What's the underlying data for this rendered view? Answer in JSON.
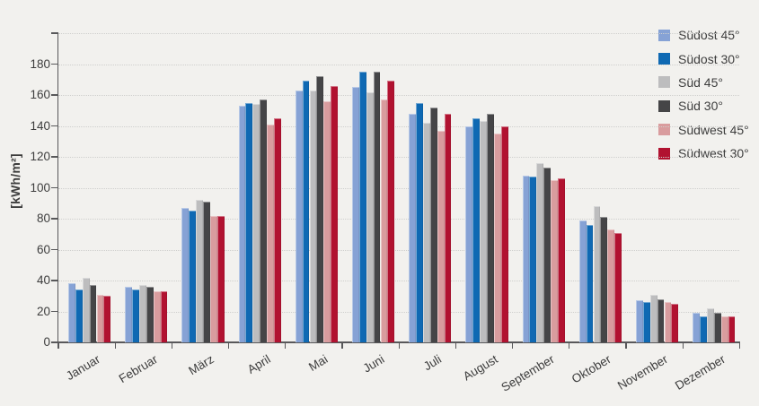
{
  "chart_data": {
    "type": "bar",
    "title": "",
    "xlabel": "",
    "ylabel": "[kWh/m²]",
    "ylim": [
      0,
      200
    ],
    "ytick_step": 20,
    "yticks_labeled": [
      0,
      20,
      40,
      60,
      80,
      100,
      120,
      140,
      160,
      180
    ],
    "grid": "horizontal-dotted",
    "legend_position": "top-right",
    "categories": [
      "Januar",
      "Februar",
      "März",
      "April",
      "Mai",
      "Juni",
      "Juli",
      "August",
      "September",
      "Oktober",
      "November",
      "Dezember"
    ],
    "series": [
      {
        "name": "Südost 45°",
        "color": "#86a2d5",
        "values": [
          38,
          36,
          87,
          153,
          163,
          165,
          148,
          140,
          108,
          79,
          27,
          19
        ]
      },
      {
        "name": "Südost 30°",
        "color": "#0f69b3",
        "values": [
          34,
          34,
          85,
          155,
          169,
          175,
          155,
          145,
          107,
          76,
          26,
          17
        ]
      },
      {
        "name": "Süd 45°",
        "color": "#bdbdbe",
        "values": [
          42,
          37,
          92,
          154,
          163,
          162,
          142,
          143,
          116,
          88,
          31,
          22
        ]
      },
      {
        "name": "Süd 30°",
        "color": "#454547",
        "values": [
          37,
          36,
          91,
          157,
          172,
          175,
          152,
          148,
          113,
          81,
          28,
          19
        ]
      },
      {
        "name": "Südwest 45°",
        "color": "#d99c9e",
        "values": [
          31,
          33,
          82,
          141,
          156,
          157,
          137,
          135,
          105,
          73,
          26,
          17
        ]
      },
      {
        "name": "Südwest 30°",
        "color": "#b11230",
        "values": [
          30,
          33,
          82,
          145,
          166,
          169,
          148,
          140,
          106,
          71,
          25,
          17
        ]
      }
    ]
  },
  "colors": {
    "background": "#f2f1ee",
    "axis": "#58585a",
    "grid": "#cfcfcd",
    "text": "#3d3d3d"
  }
}
